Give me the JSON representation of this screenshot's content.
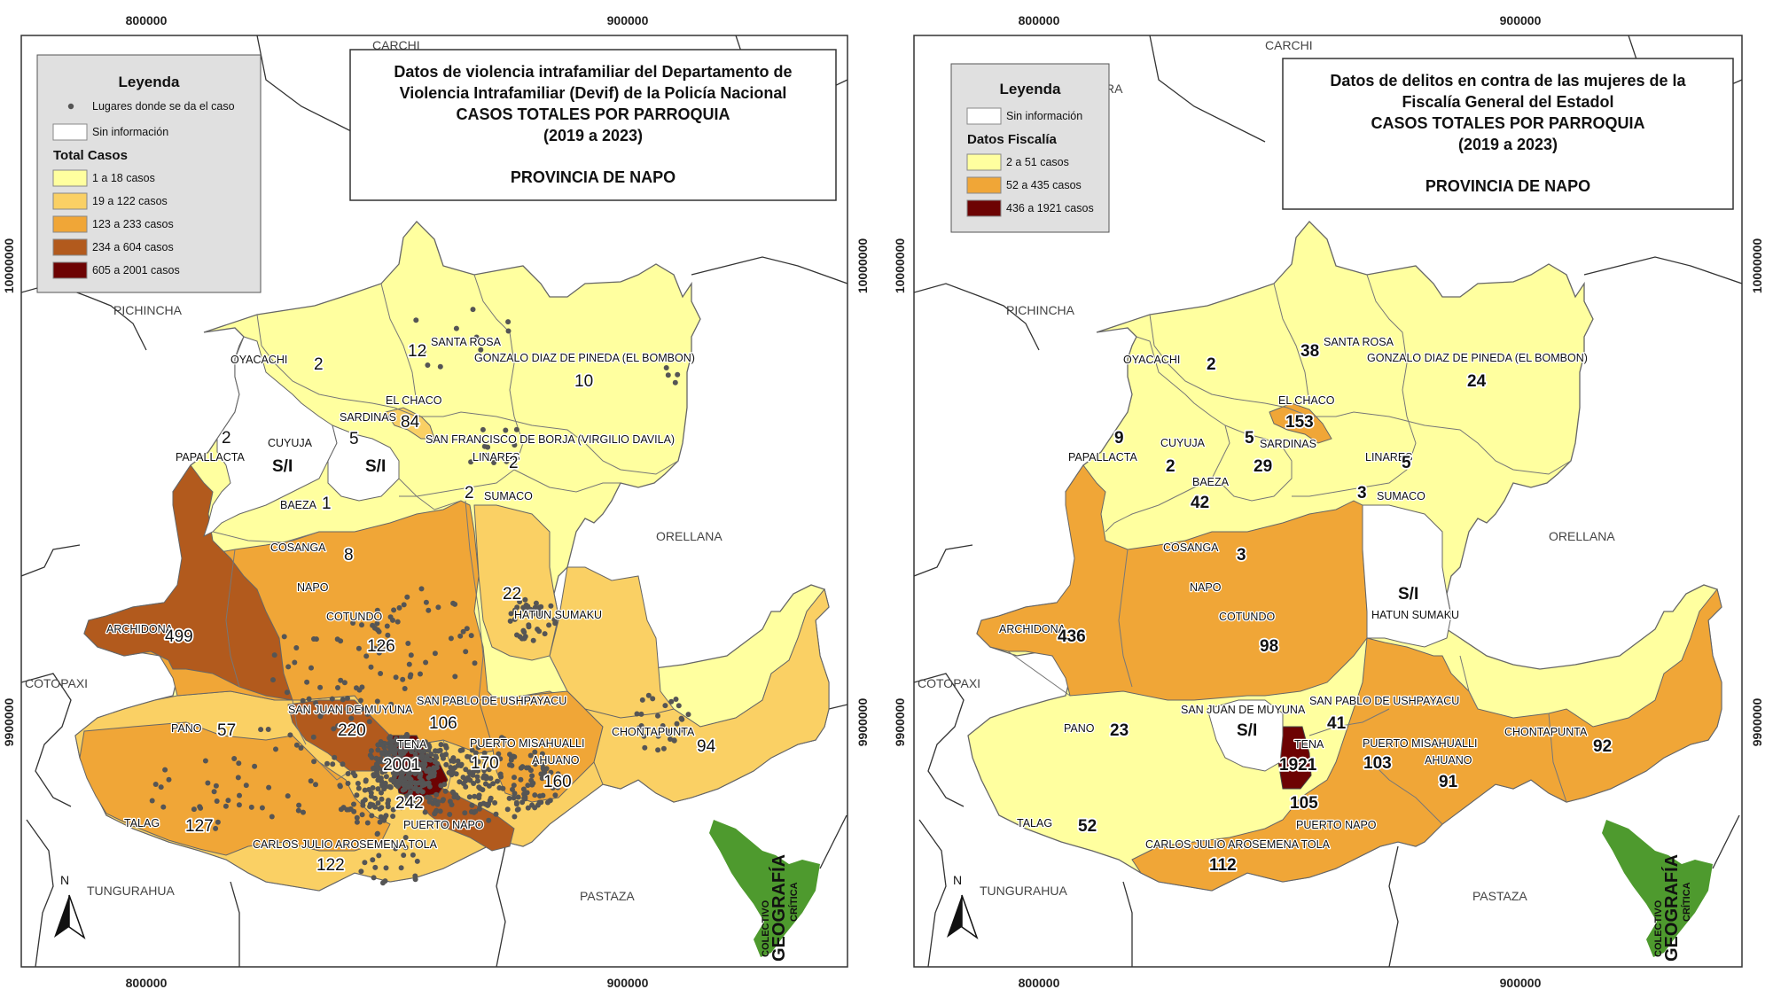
{
  "colors": {
    "c1": "#ffff9f",
    "c2": "#fad064",
    "c3": "#f0a637",
    "c4": "#b25a1d",
    "c5": "#6d0303",
    "f1": "#ffff9f",
    "f2": "#f0a637",
    "f3": "#6d0303",
    "nodata": "#ffffff",
    "dot": "#555555",
    "legend_bg": "#e0e0e0",
    "logo_green": "#4e9a2e"
  },
  "left_map": {
    "title_lines": [
      "Datos de violencia intrafamiliar del Departamento de",
      "Violencia Intrafamiliar (Devif) de la Policía Nacional",
      "CASOS TOTALES POR PARROQUIA",
      "(2019 a 2023)"
    ],
    "province": "PROVINCIA DE NAPO",
    "legend": {
      "title": "Leyenda",
      "dots_label": "Lugares donde se da el caso",
      "nodata_label": "Sin información",
      "classes_title": "Total Casos",
      "classes": [
        {
          "label": "1 a 18 casos",
          "color": "#ffff9f"
        },
        {
          "label": "19 a 122 casos",
          "color": "#fad064"
        },
        {
          "label": "123 a 233 casos",
          "color": "#f0a637"
        },
        {
          "label": "234 a 604 casos",
          "color": "#b25a1d"
        },
        {
          "label": "605 a 2001 casos",
          "color": "#6d0303"
        }
      ]
    },
    "values": {
      "oyacachi": "2",
      "santa_rosa": "12",
      "gonzalo": "10",
      "el_chaco": "84",
      "sardinas": "5",
      "papallacta": "2",
      "cuyuja": "S/I",
      "sardinas_si": "S/I",
      "linares": "2",
      "baeza": "1",
      "sumaco": "2",
      "cosanga": "8",
      "hatun_sumaku": "22",
      "archidona": "499",
      "cotundo": "126",
      "pano": "57",
      "san_juan": "220",
      "san_pablo": "106",
      "tena": "2001",
      "puerto_misahualli": "170",
      "ahuano": "160",
      "chontapunta": "94",
      "talag": "127",
      "puerto_napo": "242",
      "carlos_julio": "122"
    }
  },
  "right_map": {
    "title_lines": [
      "Datos de delitos en contra de las mujeres de la",
      "Fiscalía General del Estadol",
      "CASOS TOTALES POR PARROQUIA",
      "(2019 a 2023)"
    ],
    "province": "PROVINCIA DE NAPO",
    "legend": {
      "title": "Leyenda",
      "nodata_label": "Sin información",
      "classes_title": "Datos Fiscalía",
      "classes": [
        {
          "label": "2 a 51 casos",
          "color": "#ffff9f"
        },
        {
          "label": "52 a 435 casos",
          "color": "#f0a637"
        },
        {
          "label": "436 a 1921 casos",
          "color": "#6d0303"
        }
      ]
    },
    "values": {
      "oyacachi": "2",
      "santa_rosa": "38",
      "gonzalo": "24",
      "el_chaco": "153",
      "papallacta": "9",
      "cuyuja": "2",
      "sardinas": "5",
      "sardinas2": "29",
      "linares": "5",
      "baeza": "42",
      "sumaco": "3",
      "cosanga": "3",
      "hatun_sumaku": "S/I",
      "archidona": "436",
      "cotundo": "98",
      "pano": "23",
      "san_juan": "S/I",
      "san_pablo": "41",
      "tena": "1921",
      "puerto_misahualli": "103",
      "ahuano": "91",
      "chontapunta": "92",
      "talag": "52",
      "puerto_napo": "105",
      "carlos_julio": "112"
    }
  },
  "parish_names": {
    "oyacachi": "OYACACHI",
    "santa_rosa": "SANTA ROSA",
    "gonzalo": "GONZALO DIAZ DE PINEDA (EL BOMBON)",
    "el_chaco": "EL CHACO",
    "sardinas": "SARDINAS",
    "san_francisco": "SAN FRANCISCO DE BORJA (VIRGILIO DAVILA)",
    "papallacta": "PAPALLACTA",
    "cuyuja": "CUYUJA",
    "linares": "LINARES",
    "baeza": "BAEZA",
    "sumaco": "SUMACO",
    "cosanga": "COSANGA",
    "napo": "NAPO",
    "hatun_sumaku": "HATUN SUMAKU",
    "archidona": "ARCHIDONA",
    "cotundo": "COTUNDO",
    "pano": "PANO",
    "san_juan": "SAN JUAN DE MUYUNA",
    "san_pablo": "SAN PABLO DE USHPAYACU",
    "tena": "TENA",
    "puerto_misahualli": "PUERTO MISAHUALLI",
    "ahuano": "AHUANO",
    "chontapunta": "CHONTAPUNTA",
    "talag": "TALAG",
    "puerto_napo": "PUERTO NAPO",
    "carlos_julio": "CARLOS JULIO AROSEMENA TOLA"
  },
  "provinces": {
    "pichincha": "PICHINCHA",
    "orellana": "ORELLANA",
    "cotopaxi": "COTOPAXI",
    "tungurahua": "TUNGURAHUA",
    "pastaza": "PASTAZA",
    "carchi": "CARCHI",
    "sucumbios": "RA"
  },
  "coords": {
    "x1": "800000",
    "x2": "900000",
    "y1": "10000000",
    "y2": "9900000"
  },
  "north": "N",
  "logo": {
    "line1": "COLECTIVO",
    "line2": "GEOGRAFÍA",
    "line3": "CRÍTICA",
    "line4": "EC"
  }
}
